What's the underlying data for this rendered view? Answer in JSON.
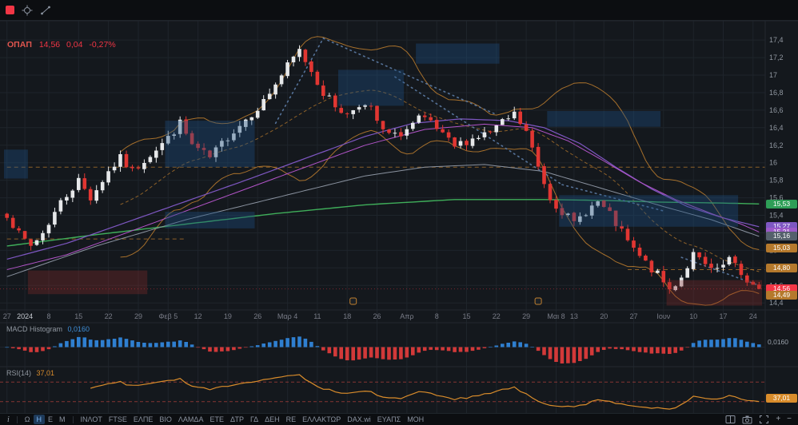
{
  "symbol_legend": {
    "symbol": "ΟΠΑΠ",
    "price": "14,56",
    "change_abs": "0,04",
    "change_pct": "-0,27%"
  },
  "colors": {
    "bg": "#14181d",
    "bar_bg": "#0c0e11",
    "grid": "#1e242b",
    "separator": "#23272e",
    "up": "#e6e8ea",
    "down": "#e13632",
    "axis_text": "#9097a0",
    "axis_text_dim": "#787b86",
    "bb": "#c07f2e",
    "green_ma": "#3fae5a",
    "purple_ma1": "#7e57c2",
    "purple_ma2": "#b254c8",
    "gray_ma": "#8b93a0",
    "box_blue": "#1d4f80",
    "box_red": "#8c2a2a",
    "trend_dotted": "#5c7ca6",
    "macd_pos": "#2f7fd0",
    "macd_neg": "#d23939",
    "rsi_line": "#d98c2b",
    "rsi_level": "#c4453f",
    "price_tag_red": "#f23645"
  },
  "chart_data": {
    "type": "candlestick",
    "symbol": "ΟΠΑΠ",
    "timeframe": "Η",
    "last_close": 14.56,
    "price_axis": {
      "min": 14.32,
      "max": 17.62,
      "tick_start": 14.4,
      "tick_end": 17.4,
      "tick_step": 0.2
    },
    "candle_count": 127,
    "seed": 7,
    "noise": 0.05,
    "wick": 0.06,
    "price_keypoints": [
      [
        0,
        15.42
      ],
      [
        2,
        15.18
      ],
      [
        4,
        15.05
      ],
      [
        6,
        15.2
      ],
      [
        9,
        15.55
      ],
      [
        12,
        15.8
      ],
      [
        14,
        15.6
      ],
      [
        17,
        15.9
      ],
      [
        19,
        16.05
      ],
      [
        21,
        15.9
      ],
      [
        24,
        16.1
      ],
      [
        27,
        16.28
      ],
      [
        29,
        16.45
      ],
      [
        31,
        16.2
      ],
      [
        34,
        16.05
      ],
      [
        37,
        16.3
      ],
      [
        40,
        16.5
      ],
      [
        43,
        16.7
      ],
      [
        45,
        16.9
      ],
      [
        47,
        17.1
      ],
      [
        49,
        17.28
      ],
      [
        51,
        17.05
      ],
      [
        53,
        16.8
      ],
      [
        55,
        16.65
      ],
      [
        57,
        16.55
      ],
      [
        59,
        16.68
      ],
      [
        61,
        16.6
      ],
      [
        63,
        16.35
      ],
      [
        65,
        16.3
      ],
      [
        67,
        16.38
      ],
      [
        69,
        16.5
      ],
      [
        71,
        16.45
      ],
      [
        73,
        16.3
      ],
      [
        75,
        16.18
      ],
      [
        77,
        16.25
      ],
      [
        79,
        16.3
      ],
      [
        81,
        16.35
      ],
      [
        83,
        16.45
      ],
      [
        85,
        16.55
      ],
      [
        87,
        16.35
      ],
      [
        89,
        15.95
      ],
      [
        91,
        15.6
      ],
      [
        93,
        15.45
      ],
      [
        95,
        15.3
      ],
      [
        97,
        15.45
      ],
      [
        99,
        15.55
      ],
      [
        101,
        15.4
      ],
      [
        103,
        15.2
      ],
      [
        105,
        15.0
      ],
      [
        107,
        14.85
      ],
      [
        109,
        14.72
      ],
      [
        111,
        14.55
      ],
      [
        113,
        14.7
      ],
      [
        115,
        14.95
      ],
      [
        117,
        14.82
      ],
      [
        119,
        14.75
      ],
      [
        121,
        14.9
      ],
      [
        123,
        14.72
      ],
      [
        125,
        14.6
      ],
      [
        126,
        14.56
      ]
    ],
    "time_ticks": {
      "labels": [
        "27",
        "2024",
        "8",
        "15",
        "22",
        "29",
        "Φεβ 5",
        "12",
        "19",
        "26",
        "Μαρ 4",
        "11",
        "18",
        "26",
        "Απρ",
        "8",
        "15",
        "22",
        "29",
        "Μαι 8",
        "13",
        "20",
        "27",
        "Ιουν",
        "10",
        "17",
        "24"
      ],
      "indices": [
        0,
        3,
        7,
        12,
        17,
        22,
        27,
        32,
        37,
        42,
        47,
        52,
        57,
        62,
        67,
        72,
        77,
        82,
        87,
        92,
        95,
        100,
        105,
        110,
        115,
        120,
        125
      ],
      "highlight": "2024"
    },
    "event_marker_indices": [
      58,
      89
    ],
    "ma_lines": [
      {
        "name": "sma-long-green",
        "color": "#3fae5a",
        "width": 1.4,
        "points": [
          [
            0,
            15.05
          ],
          [
            15,
            15.18
          ],
          [
            30,
            15.3
          ],
          [
            45,
            15.42
          ],
          [
            60,
            15.52
          ],
          [
            75,
            15.58
          ],
          [
            90,
            15.58
          ],
          [
            100,
            15.57
          ],
          [
            110,
            15.55
          ],
          [
            120,
            15.54
          ],
          [
            126,
            15.53
          ]
        ]
      },
      {
        "name": "sma-mid-purple-1",
        "color": "#7e57c2",
        "width": 1.2,
        "points": [
          [
            0,
            14.9
          ],
          [
            10,
            15.08
          ],
          [
            20,
            15.32
          ],
          [
            30,
            15.56
          ],
          [
            40,
            15.8
          ],
          [
            50,
            16.05
          ],
          [
            60,
            16.3
          ],
          [
            68,
            16.45
          ],
          [
            76,
            16.5
          ],
          [
            84,
            16.48
          ],
          [
            90,
            16.4
          ],
          [
            96,
            16.22
          ],
          [
            102,
            15.95
          ],
          [
            108,
            15.7
          ],
          [
            114,
            15.5
          ],
          [
            120,
            15.37
          ],
          [
            126,
            15.27
          ]
        ]
      },
      {
        "name": "sma-mid-purple-2",
        "color": "#b254c8",
        "width": 1.0,
        "points": [
          [
            0,
            14.78
          ],
          [
            10,
            14.95
          ],
          [
            20,
            15.2
          ],
          [
            30,
            15.45
          ],
          [
            40,
            15.7
          ],
          [
            50,
            15.95
          ],
          [
            60,
            16.2
          ],
          [
            70,
            16.38
          ],
          [
            80,
            16.44
          ],
          [
            88,
            16.4
          ],
          [
            94,
            16.25
          ],
          [
            100,
            16.02
          ],
          [
            106,
            15.78
          ],
          [
            112,
            15.58
          ],
          [
            118,
            15.42
          ],
          [
            123,
            15.3
          ],
          [
            126,
            15.21
          ]
        ]
      },
      {
        "name": "ma-gray",
        "color": "#8b93a0",
        "width": 1.0,
        "points": [
          [
            0,
            14.7
          ],
          [
            15,
            15.05
          ],
          [
            30,
            15.35
          ],
          [
            45,
            15.6
          ],
          [
            60,
            15.85
          ],
          [
            70,
            15.95
          ],
          [
            80,
            15.98
          ],
          [
            90,
            15.9
          ],
          [
            100,
            15.7
          ],
          [
            110,
            15.5
          ],
          [
            118,
            15.35
          ],
          [
            126,
            15.16
          ]
        ]
      }
    ],
    "bollinger": {
      "period": 20,
      "mult": 2,
      "color": "#c07f2e"
    },
    "boxes": [
      {
        "i1": 69,
        "i2": 83,
        "p1": 17.13,
        "p2": 17.36,
        "type": "blue"
      },
      {
        "i1": 56,
        "i2": 67,
        "p1": 16.65,
        "p2": 17.06,
        "type": "blue"
      },
      {
        "i1": 27,
        "i2": 42,
        "p1": 15.95,
        "p2": 16.48,
        "type": "blue"
      },
      {
        "i1": 27,
        "i2": 42,
        "p1": 15.25,
        "p2": 15.44,
        "type": "blue"
      },
      {
        "i1": 91,
        "i2": 110,
        "p1": 16.41,
        "p2": 16.59,
        "type": "blue"
      },
      {
        "i1": 0,
        "i2": 4,
        "p1": 15.82,
        "p2": 16.15,
        "type": "blue"
      },
      {
        "i1": 93,
        "i2": 123,
        "p1": 15.27,
        "p2": 15.63,
        "type": "blue"
      },
      {
        "i1": 4,
        "i2": 24,
        "p1": 14.5,
        "p2": 14.77,
        "type": "red"
      },
      {
        "i1": 111,
        "i2": 127,
        "p1": 14.37,
        "p2": 14.66,
        "type": "red"
      }
    ],
    "trendlines": [
      {
        "i1": 45,
        "p1": 16.45,
        "i2": 53,
        "p2": 17.42
      },
      {
        "i1": 53,
        "p1": 17.42,
        "i2": 82,
        "p2": 16.55
      },
      {
        "i1": 65,
        "p1": 16.98,
        "i2": 93,
        "p2": 15.75
      },
      {
        "i1": 93,
        "p1": 15.75,
        "i2": 110,
        "p2": 15.45
      },
      {
        "i1": 113,
        "p1": 14.92,
        "i2": 126,
        "p2": 14.6
      }
    ],
    "hlines": [
      {
        "p": 15.95,
        "i1": 0,
        "i2": 127
      },
      {
        "p": 15.13,
        "i1": 0,
        "i2": 30
      },
      {
        "p": 14.78,
        "i1": 104,
        "i2": 127
      }
    ],
    "macd": {
      "fast": 12,
      "slow": 26,
      "signal": 9,
      "last_value": 0.016
    },
    "rsi": {
      "period": 14,
      "last_value": 37.01,
      "levels": [
        70,
        30
      ]
    }
  },
  "macd_panel": {
    "title": "MACD Histogram",
    "value": "0,0160"
  },
  "rsi_panel": {
    "title": "RSI(14)",
    "value": "37,01"
  },
  "price_tags": [
    {
      "label": "15,53",
      "price": 15.53,
      "bg": "#2e9e57",
      "fg": "#ffffff"
    },
    {
      "label": "15,27",
      "price": 15.27,
      "bg": "#7e57c2",
      "fg": "#ffffff"
    },
    {
      "label": "15,21",
      "price": 15.21,
      "bg": "#9b59c8",
      "fg": "#ffffff"
    },
    {
      "label": "15,16",
      "price": 15.16,
      "bg": "#55606c",
      "fg": "#ffffff"
    },
    {
      "label": "15,03",
      "price": 15.03,
      "bg": "#b5792c",
      "fg": "#ffffff"
    },
    {
      "label": "14,80",
      "price": 14.8,
      "bg": "#b5792c",
      "fg": "#ffffff"
    },
    {
      "label": "14,56",
      "price": 14.56,
      "bg": "#f23645",
      "fg": "#ffffff"
    },
    {
      "label": "14,49",
      "price": 14.49,
      "bg": "#b5792c",
      "fg": "#ffffff"
    }
  ],
  "toolbar": {
    "info_label": "i",
    "zoom_in": "+",
    "zoom_out": "−",
    "timeframes": [
      {
        "label": "Ω",
        "active": false
      },
      {
        "label": "Η",
        "active": true
      },
      {
        "label": "Ε",
        "active": false
      },
      {
        "label": "Μ",
        "active": false
      }
    ],
    "tickers": [
      "ΙΝΛΟΤ",
      "FTSE",
      "ΕΛΠΕ",
      "ΒΙΟ",
      "ΛΑΜΔΑ",
      "ΕΤΕ",
      "ΔΤΡ",
      "ΓΔ",
      "ΔΕΗ",
      "RE",
      "ΕΛΛΑΚΤΩΡ",
      "DAX.wi",
      "ΕΥΑΠΣ",
      "ΜΟΗ"
    ]
  }
}
